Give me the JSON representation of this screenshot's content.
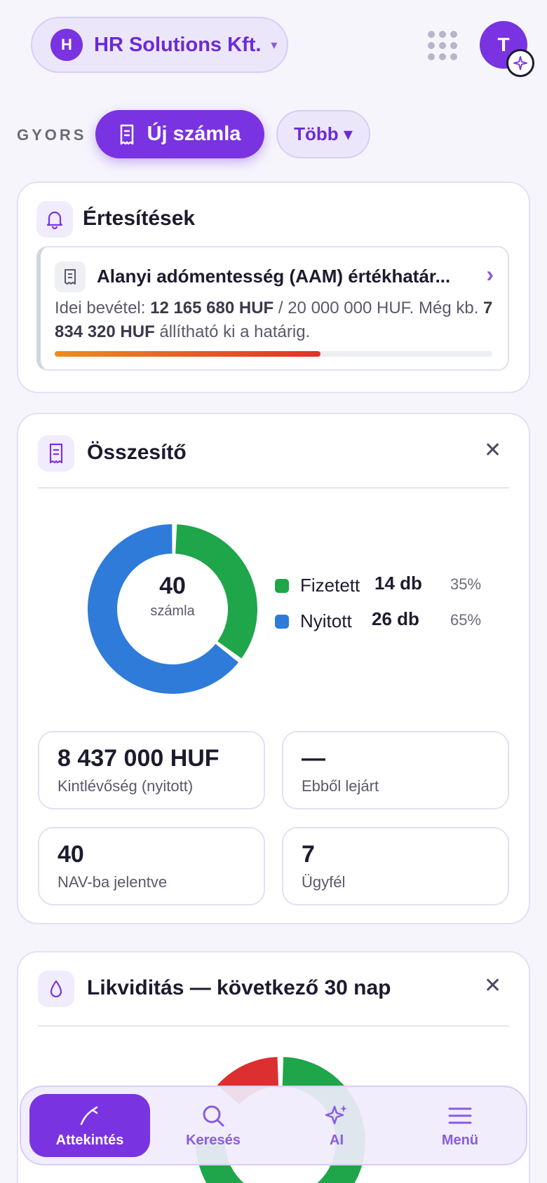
{
  "header": {
    "company_initial": "H",
    "company_name": "HR Solutions Kft.",
    "company_caret": "▾",
    "user_initial": "T"
  },
  "quick": {
    "label": "GYORS",
    "new_invoice": "Új számla",
    "more": "Több ▾"
  },
  "notifications": {
    "title": "Értesítések",
    "item": {
      "title": "Alanyi adómentesség (AAM) értékhatár...",
      "text_prefix": "Idei bevétel: ",
      "income": "12 165 680 HUF",
      "text_mid": " / 20 000 000 HUF. Még kb. ",
      "remaining": "7 834 320 HUF",
      "text_suffix": " állítható ki a határig.",
      "progress_percent": 60.8
    }
  },
  "summary": {
    "title": "Összesítő",
    "close": "✕",
    "donut_total": "40",
    "donut_label": "számla",
    "legend": [
      {
        "name": "Fizetett",
        "count": "14 db",
        "percent": "35%",
        "color": "#1fa54a"
      },
      {
        "name": "Nyitott",
        "count": "26 db",
        "percent": "65%",
        "color": "#2f7bd9"
      }
    ],
    "stats": [
      {
        "value": "8 437 000 HUF",
        "label": "Kintlévőség (nyitott)"
      },
      {
        "value": "—",
        "label": "Ebből lejárt"
      },
      {
        "value": "40",
        "label": "NAV-ba jelentve"
      },
      {
        "value": "7",
        "label": "Ügyfél"
      }
    ]
  },
  "liquidity": {
    "title": "Likviditás — következő 30 nap",
    "close": "✕"
  },
  "chart_data": {
    "type": "pie",
    "categories": [
      "Fizetett",
      "Nyitott"
    ],
    "values": [
      14,
      26
    ],
    "total": 40,
    "colors": [
      "#1fa54a",
      "#2f7bd9"
    ]
  },
  "nav": {
    "items": [
      {
        "label": "Attekintés",
        "icon": "overview-icon",
        "active": true
      },
      {
        "label": "Keresés",
        "icon": "search-icon",
        "active": false
      },
      {
        "label": "AI",
        "icon": "sparkle-icon",
        "active": false
      },
      {
        "label": "Menü",
        "icon": "menu-icon",
        "active": false
      }
    ]
  }
}
